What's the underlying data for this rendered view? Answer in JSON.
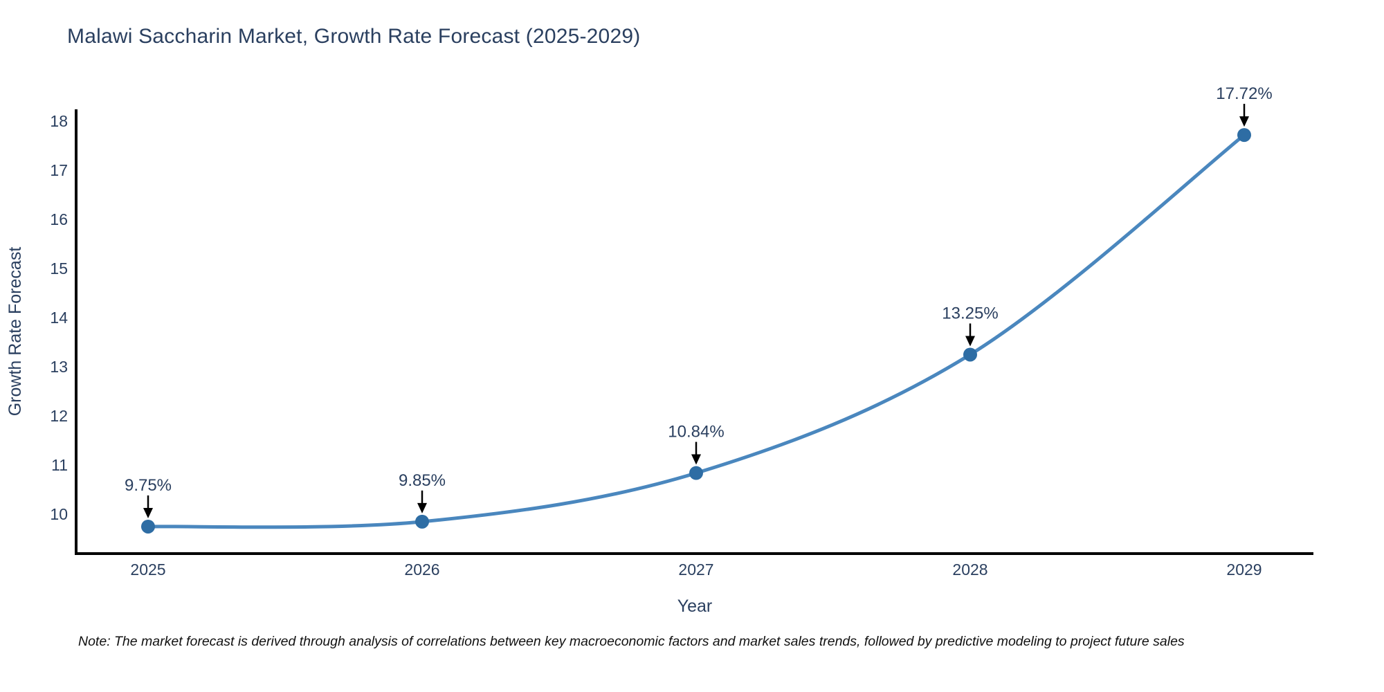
{
  "title": "Malawi Saccharin Market, Growth Rate Forecast (2025-2029)",
  "note": "Note: The market forecast is derived through analysis of correlations between key macroeconomic factors and market sales trends, followed by predictive modeling to project future sales",
  "chart_data": {
    "type": "line",
    "title": "Malawi Saccharin Market, Growth Rate Forecast (2025-2029)",
    "x": [
      2025,
      2026,
      2027,
      2028,
      2029
    ],
    "series": [
      {
        "name": "Growth Rate Forecast",
        "values": [
          9.75,
          9.85,
          10.84,
          13.25,
          17.72
        ]
      }
    ],
    "point_labels": [
      "9.75%",
      "9.85%",
      "10.84%",
      "13.25%",
      "17.72%"
    ],
    "xlabel": "Year",
    "ylabel": "Growth Rate Forecast",
    "xticks": [
      "2025",
      "2026",
      "2027",
      "2028",
      "2029"
    ],
    "yticks": [
      10,
      11,
      12,
      13,
      14,
      15,
      16,
      17,
      18
    ],
    "ylim": [
      9.2,
      18.24
    ],
    "grid": false,
    "legend_position": "none",
    "line_shape": "spline",
    "colors": {
      "line": "#4a87be",
      "marker": "#2e6da4",
      "axis": "#000000",
      "tick_text": "#2a3f5f",
      "title_text": "#2a3f5f",
      "annotation_text": "#2a3f5f",
      "annotation_arrow": "#000000"
    }
  }
}
